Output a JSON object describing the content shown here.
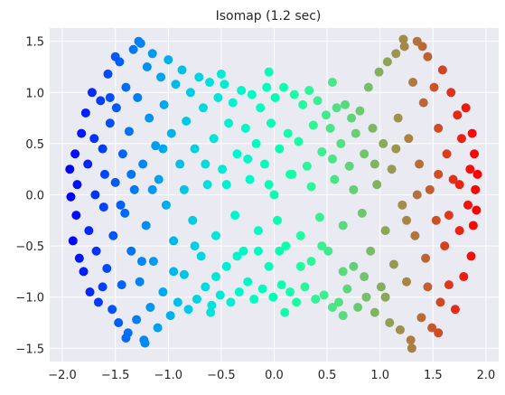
{
  "chart_data": {
    "type": "scatter",
    "title": "Isomap (1.2 sec)",
    "xlabel": "",
    "ylabel": "",
    "xlim": [
      -2.12,
      2.12
    ],
    "ylim": [
      -1.63,
      1.63
    ],
    "xticks": [
      -2.0,
      -1.5,
      -1.0,
      -0.5,
      0.0,
      0.5,
      1.0,
      1.5,
      2.0
    ],
    "xtick_labels": [
      "−2.0",
      "−1.5",
      "−1.0",
      "−0.5",
      "0.0",
      "0.5",
      "1.0",
      "1.5",
      "2.0"
    ],
    "yticks": [
      -1.5,
      -1.0,
      -0.5,
      0.0,
      0.5,
      1.0,
      1.5
    ],
    "ytick_labels": [
      "−1.5",
      "−1.0",
      "−0.5",
      "0.0",
      "0.5",
      "1.0",
      "1.5"
    ],
    "grid": true,
    "legend": "none",
    "colormap": "rainbow",
    "color_by": "x value (purple at left → red at right)",
    "background": "#eaeaf2",
    "gridline_color": "#ffffff",
    "marker": "filled circle",
    "points": [
      [
        -1.93,
        0.25
      ],
      [
        -1.92,
        -0.02
      ],
      [
        -1.9,
        -0.45
      ],
      [
        -1.88,
        0.4
      ],
      [
        -1.87,
        -0.2
      ],
      [
        -1.86,
        0.1
      ],
      [
        -1.84,
        -0.62
      ],
      [
        -1.82,
        0.6
      ],
      [
        -1.8,
        -0.75
      ],
      [
        -1.78,
        0.8
      ],
      [
        -1.76,
        0.3
      ],
      [
        -1.75,
        -0.35
      ],
      [
        -1.74,
        -0.95
      ],
      [
        -1.72,
        1.0
      ],
      [
        -1.7,
        0.55
      ],
      [
        -1.69,
        0.0
      ],
      [
        -1.68,
        -0.55
      ],
      [
        -1.66,
        -1.05
      ],
      [
        -1.64,
        0.92
      ],
      [
        -1.62,
        0.45
      ],
      [
        -1.61,
        -0.12
      ],
      [
        -1.6,
        0.2
      ],
      [
        -1.58,
        -0.72
      ],
      [
        -1.57,
        1.18
      ],
      [
        -1.55,
        0.7
      ],
      [
        -1.53,
        -1.12
      ],
      [
        -1.52,
        -0.4
      ],
      [
        -1.5,
        0.12
      ],
      [
        -1.49,
        0.85
      ],
      [
        -1.47,
        -1.25
      ],
      [
        -1.46,
        1.3
      ],
      [
        -1.44,
        -0.88
      ],
      [
        -1.43,
        0.4
      ],
      [
        -1.41,
        -0.18
      ],
      [
        -1.4,
        1.05
      ],
      [
        -1.38,
        -1.35
      ],
      [
        -1.37,
        0.62
      ],
      [
        -1.35,
        -0.55
      ],
      [
        -1.33,
        1.42
      ],
      [
        -1.32,
        0.05
      ],
      [
        -1.3,
        -1.22
      ],
      [
        -1.29,
        0.95
      ],
      [
        -1.27,
        -0.85
      ],
      [
        -1.26,
        1.48
      ],
      [
        -1.24,
        0.3
      ],
      [
        -1.23,
        -1.42
      ],
      [
        -1.21,
        -0.3
      ],
      [
        -1.2,
        1.25
      ],
      [
        -1.18,
        0.75
      ],
      [
        -1.17,
        -1.1
      ],
      [
        -1.15,
        1.38
      ],
      [
        -1.14,
        -0.65
      ],
      [
        -1.12,
        0.48
      ],
      [
        -1.1,
        -1.3
      ],
      [
        -1.09,
        0.15
      ],
      [
        -1.07,
        1.15
      ],
      [
        -1.05,
        -0.95
      ],
      [
        -1.04,
        0.88
      ],
      [
        -1.02,
        -0.1
      ],
      [
        -1.0,
        1.32
      ],
      [
        -0.98,
        -1.18
      ],
      [
        -0.97,
        0.6
      ],
      [
        -0.95,
        -0.45
      ],
      [
        -0.93,
        1.08
      ],
      [
        -0.91,
        -1.05
      ],
      [
        -0.89,
        0.3
      ],
      [
        -0.87,
        1.22
      ],
      [
        -0.85,
        -0.78
      ],
      [
        -0.83,
        0.72
      ],
      [
        -0.81,
        -1.12
      ],
      [
        -0.79,
        1.0
      ],
      [
        -0.77,
        -0.25
      ],
      [
        -0.75,
        0.45
      ],
      [
        -0.73,
        -1.02
      ],
      [
        -0.71,
        1.15
      ],
      [
        -0.69,
        -0.6
      ],
      [
        -0.67,
        0.85
      ],
      [
        -0.65,
        -0.9
      ],
      [
        -0.63,
        0.1
      ],
      [
        -0.61,
        1.1
      ],
      [
        -0.59,
        -1.08
      ],
      [
        -0.57,
        0.55
      ],
      [
        -0.55,
        -0.4
      ],
      [
        -0.53,
        0.95
      ],
      [
        -0.51,
        -0.98
      ],
      [
        -0.49,
        0.25
      ],
      [
        -0.47,
        1.08
      ],
      [
        -0.45,
        -0.7
      ],
      [
        -0.43,
        0.7
      ],
      [
        -0.41,
        -1.05
      ],
      [
        -0.39,
        0.9
      ],
      [
        -0.37,
        -0.2
      ],
      [
        -0.35,
        0.4
      ],
      [
        -0.33,
        -0.95
      ],
      [
        -0.31,
        1.02
      ],
      [
        -0.29,
        -0.55
      ],
      [
        -0.27,
        0.65
      ],
      [
        -0.25,
        -0.85
      ],
      [
        -0.23,
        0.15
      ],
      [
        -0.21,
        0.98
      ],
      [
        -0.19,
        -1.02
      ],
      [
        -0.17,
        0.5
      ],
      [
        -0.15,
        -0.35
      ],
      [
        -0.13,
        0.85
      ],
      [
        -0.11,
        -0.92
      ],
      [
        -0.09,
        0.3
      ],
      [
        -0.07,
        1.05
      ],
      [
        -0.05,
        -0.7
      ],
      [
        -0.03,
        0.7
      ],
      [
        -0.01,
        -1.0
      ],
      [
        0.01,
        0.95
      ],
      [
        0.03,
        -0.25
      ],
      [
        0.05,
        0.45
      ],
      [
        0.07,
        -0.88
      ],
      [
        0.09,
        1.05
      ],
      [
        0.11,
        -0.5
      ],
      [
        0.13,
        0.6
      ],
      [
        0.15,
        -0.95
      ],
      [
        0.17,
        0.2
      ],
      [
        0.19,
        0.98
      ],
      [
        0.21,
        -1.05
      ],
      [
        0.23,
        0.52
      ],
      [
        0.25,
        -0.4
      ],
      [
        0.27,
        0.88
      ],
      [
        0.29,
        -0.9
      ],
      [
        0.31,
        0.28
      ],
      [
        0.33,
        1.02
      ],
      [
        0.35,
        -0.65
      ],
      [
        0.37,
        0.68
      ],
      [
        0.39,
        -1.02
      ],
      [
        0.41,
        0.92
      ],
      [
        0.43,
        -0.22
      ],
      [
        0.45,
        0.42
      ],
      [
        0.47,
        -0.98
      ],
      [
        0.49,
        0.78
      ],
      [
        0.51,
        -0.55
      ],
      [
        0.53,
        0.65
      ],
      [
        0.55,
        -1.1
      ],
      [
        0.57,
        0.15
      ],
      [
        0.59,
        0.85
      ],
      [
        0.61,
        -1.05
      ],
      [
        0.63,
        0.5
      ],
      [
        0.65,
        -0.3
      ],
      [
        0.67,
        0.88
      ],
      [
        0.69,
        -0.92
      ],
      [
        0.71,
        0.28
      ],
      [
        0.73,
        0.75
      ],
      [
        0.75,
        -0.7
      ],
      [
        0.77,
        0.6
      ],
      [
        0.79,
        -1.1
      ],
      [
        0.81,
        0.82
      ],
      [
        0.83,
        -0.18
      ],
      [
        0.85,
        0.4
      ],
      [
        0.87,
        -1.0
      ],
      [
        0.89,
        1.05
      ],
      [
        0.91,
        -0.55
      ],
      [
        0.93,
        0.65
      ],
      [
        0.95,
        -1.15
      ],
      [
        0.97,
        0.1
      ],
      [
        0.99,
        1.2
      ],
      [
        1.01,
        -0.9
      ],
      [
        1.03,
        0.5
      ],
      [
        1.05,
        -0.35
      ],
      [
        1.07,
        1.3
      ],
      [
        1.09,
        -1.25
      ],
      [
        1.11,
        0.25
      ],
      [
        1.13,
        -0.68
      ],
      [
        1.15,
        1.38
      ],
      [
        1.17,
        0.75
      ],
      [
        1.19,
        -1.32
      ],
      [
        1.21,
        -0.1
      ],
      [
        1.23,
        1.45
      ],
      [
        1.25,
        -0.85
      ],
      [
        1.27,
        0.55
      ],
      [
        1.29,
        -1.42
      ],
      [
        1.31,
        1.1
      ],
      [
        1.33,
        -0.4
      ],
      [
        1.35,
        1.5
      ],
      [
        1.37,
        0.3
      ],
      [
        1.39,
        -1.2
      ],
      [
        1.41,
        0.9
      ],
      [
        1.43,
        -0.62
      ],
      [
        1.45,
        1.35
      ],
      [
        1.47,
        0.05
      ],
      [
        1.49,
        -1.3
      ],
      [
        1.51,
        1.05
      ],
      [
        1.53,
        -0.25
      ],
      [
        1.55,
        0.65
      ],
      [
        1.57,
        -1.05
      ],
      [
        1.59,
        1.22
      ],
      [
        1.61,
        -0.5
      ],
      [
        1.63,
        0.4
      ],
      [
        1.65,
        -0.88
      ],
      [
        1.67,
        1.0
      ],
      [
        1.69,
        0.15
      ],
      [
        1.71,
        -1.12
      ],
      [
        1.73,
        0.78
      ],
      [
        1.75,
        -0.35
      ],
      [
        1.77,
        0.55
      ],
      [
        1.79,
        -0.8
      ],
      [
        1.81,
        0.85
      ],
      [
        1.83,
        -0.1
      ],
      [
        1.85,
        0.25
      ],
      [
        1.86,
        -0.6
      ],
      [
        1.87,
        0.6
      ],
      [
        1.88,
        -0.3
      ],
      [
        1.89,
        0.4
      ],
      [
        1.9,
        0.05
      ],
      [
        1.91,
        -0.15
      ],
      [
        1.92,
        0.2
      ],
      [
        -1.62,
        -0.9
      ],
      [
        -1.55,
        0.95
      ],
      [
        -1.45,
        -0.1
      ],
      [
        -1.35,
        0.2
      ],
      [
        -1.25,
        -0.65
      ],
      [
        -1.15,
        0.05
      ],
      [
        -1.05,
        0.45
      ],
      [
        -0.95,
        -0.75
      ],
      [
        -0.85,
        0.05
      ],
      [
        -0.75,
        -0.5
      ],
      [
        -0.65,
        0.3
      ],
      [
        -0.55,
        -0.8
      ],
      [
        -0.45,
        0.1
      ],
      [
        -0.35,
        -0.6
      ],
      [
        -0.25,
        0.35
      ],
      [
        -0.15,
        -0.55
      ],
      [
        -0.05,
        0.1
      ],
      [
        0.05,
        -0.55
      ],
      [
        0.15,
        0.2
      ],
      [
        0.25,
        -0.7
      ],
      [
        0.35,
        0.08
      ],
      [
        0.45,
        -0.5
      ],
      [
        0.55,
        0.35
      ],
      [
        0.65,
        -0.75
      ],
      [
        0.75,
        0.05
      ],
      [
        0.85,
        -0.8
      ],
      [
        0.95,
        0.3
      ],
      [
        1.05,
        -1.0
      ],
      [
        1.15,
        0.45
      ],
      [
        1.25,
        -0.25
      ],
      [
        1.35,
        0.0
      ],
      [
        1.45,
        -0.9
      ],
      [
        1.55,
        0.2
      ],
      [
        1.65,
        -0.2
      ],
      [
        1.75,
        0.1
      ],
      [
        1.22,
        1.52
      ],
      [
        1.3,
        -1.5
      ],
      [
        -1.28,
        1.5
      ],
      [
        -1.22,
        -1.45
      ],
      [
        1.4,
        1.45
      ],
      [
        -1.4,
        -1.4
      ],
      [
        -1.5,
        1.35
      ],
      [
        1.55,
        -1.35
      ],
      [
        -0.05,
        1.2
      ],
      [
        0.1,
        -1.15
      ],
      [
        -0.5,
        1.18
      ],
      [
        0.55,
        1.1
      ],
      [
        -0.6,
        -1.15
      ],
      [
        0.65,
        -1.18
      ],
      [
        0.0,
        0.0
      ]
    ]
  }
}
